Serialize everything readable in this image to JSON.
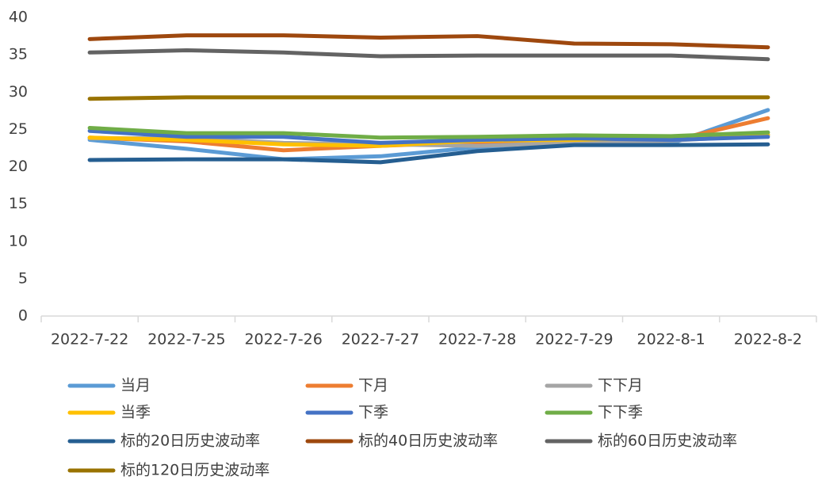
{
  "chart_data": {
    "type": "line",
    "categories": [
      "2022-7-22",
      "2022-7-25",
      "2022-7-26",
      "2022-7-27",
      "2022-7-28",
      "2022-7-29",
      "2022-8-1",
      "2022-8-2"
    ],
    "series": [
      {
        "name": "当月",
        "color": "#5b9bd5",
        "values": [
          23.6,
          22.4,
          21.0,
          21.4,
          22.6,
          23.0,
          23.1,
          27.6
        ]
      },
      {
        "name": "下月",
        "color": "#ed7d31",
        "values": [
          23.9,
          23.4,
          22.2,
          22.8,
          23.3,
          23.3,
          23.5,
          26.5
        ]
      },
      {
        "name": "下下月",
        "color": "#a5a5a5",
        "values": [
          23.8,
          23.8,
          23.2,
          23.0,
          22.8,
          23.2,
          23.5,
          24.2
        ]
      },
      {
        "name": "当季",
        "color": "#ffc000",
        "values": [
          23.9,
          23.6,
          23.0,
          22.8,
          23.5,
          23.6,
          23.9,
          24.3
        ]
      },
      {
        "name": "下季",
        "color": "#4472c4",
        "values": [
          24.8,
          24.0,
          24.0,
          23.2,
          23.6,
          23.8,
          23.6,
          24.0
        ]
      },
      {
        "name": "下下季",
        "color": "#70ad47",
        "values": [
          25.2,
          24.5,
          24.5,
          23.9,
          24.0,
          24.2,
          24.1,
          24.6
        ]
      },
      {
        "name": "标的20日历史波动率",
        "color": "#255e91",
        "values": [
          20.9,
          21.0,
          21.0,
          20.6,
          22.1,
          22.9,
          22.9,
          23.0
        ]
      },
      {
        "name": "标的40日历史波动率",
        "color": "#9e480e",
        "values": [
          37.1,
          37.6,
          37.6,
          37.3,
          37.5,
          36.5,
          36.4,
          36.0
        ]
      },
      {
        "name": "标的60日历史波动率",
        "color": "#636363",
        "values": [
          35.3,
          35.6,
          35.3,
          34.8,
          34.9,
          34.9,
          34.9,
          34.4
        ]
      },
      {
        "name": "标的120日历史波动率",
        "color": "#997300",
        "values": [
          29.1,
          29.3,
          29.3,
          29.3,
          29.3,
          29.3,
          29.3,
          29.3
        ]
      }
    ],
    "ylim": [
      0,
      40
    ],
    "yticks": [
      0,
      5,
      10,
      15,
      20,
      25,
      30,
      35,
      40
    ],
    "grid": false,
    "legend": "bottom"
  }
}
